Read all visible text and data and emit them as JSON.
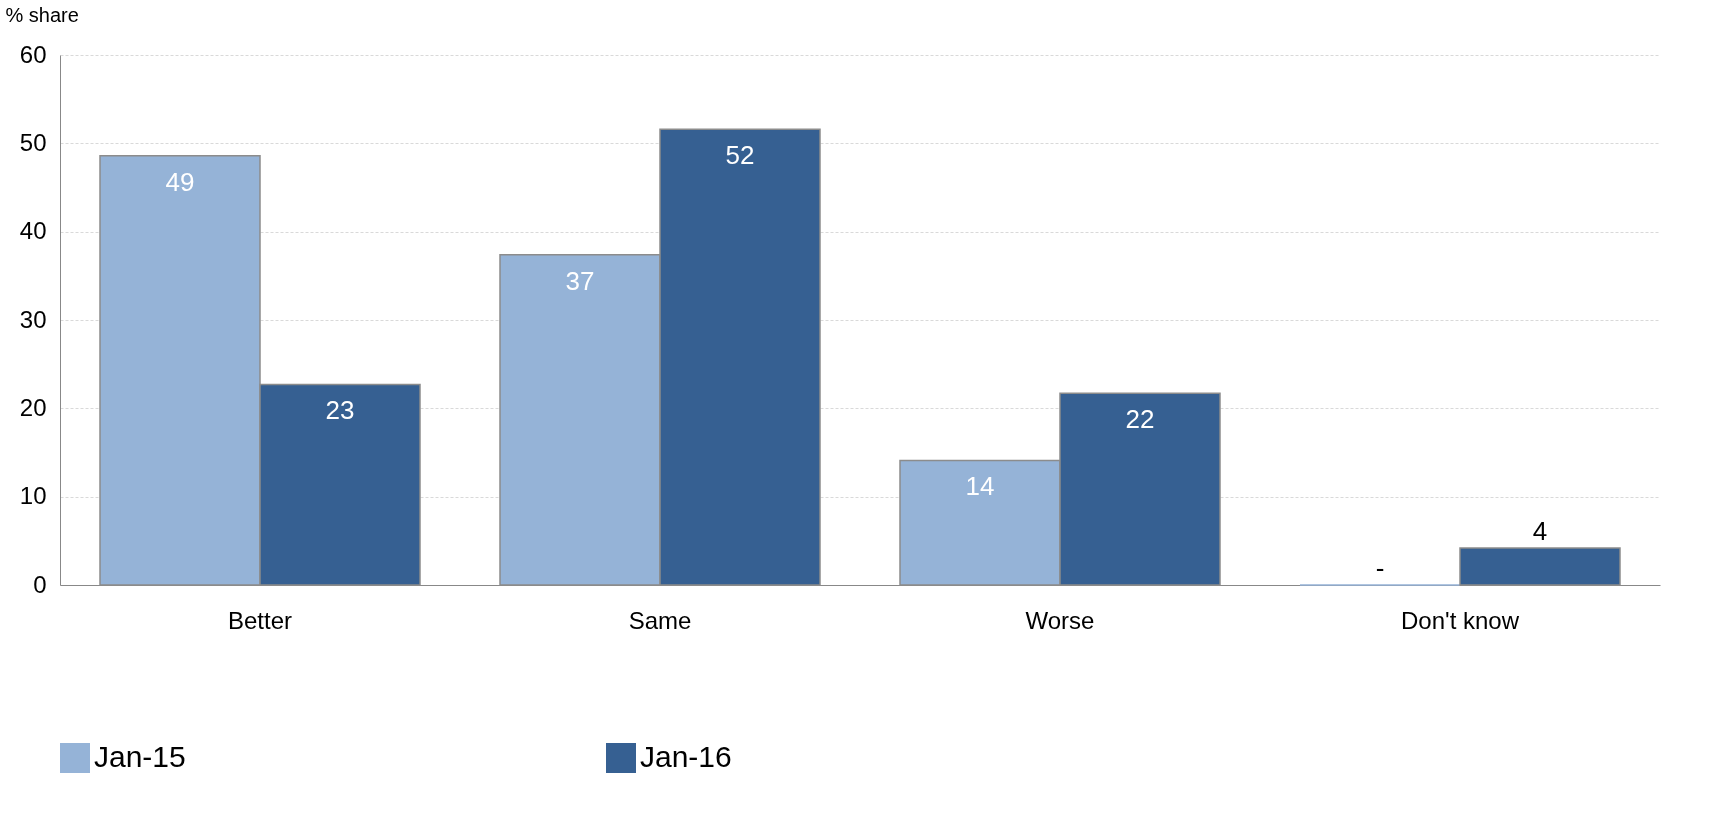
{
  "chart_data": {
    "type": "bar",
    "ylabel": "% share",
    "categories": [
      "Better",
      "Same",
      "Worse",
      "Don't know"
    ],
    "series": [
      {
        "name": "Jan-15",
        "color": "#95b3d7",
        "values": [
          48.6,
          37.4,
          14.1,
          0
        ],
        "value_labels": [
          "49",
          "37",
          "14",
          "-"
        ]
      },
      {
        "name": "Jan-16",
        "color": "#366092",
        "values": [
          22.7,
          51.6,
          21.7,
          4.2
        ],
        "value_labels": [
          "23",
          "52",
          "22",
          "4"
        ]
      }
    ],
    "ylim": [
      0,
      60
    ],
    "yticks": [
      0,
      10,
      20,
      30,
      40,
      50,
      60
    ],
    "grid": "y",
    "legend": "bottom"
  }
}
